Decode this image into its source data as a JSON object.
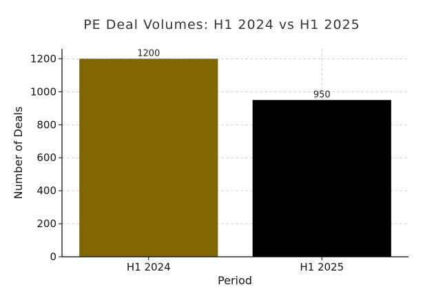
{
  "chart_data": {
    "type": "bar",
    "title": "PE Deal Volumes: H1 2024 vs H1 2025",
    "xlabel": "Period",
    "ylabel": "Number of Deals",
    "categories": [
      "H1 2024",
      "H1 2025"
    ],
    "values": [
      1200,
      950
    ],
    "data_labels": [
      "1200",
      "950"
    ],
    "bar_colors": [
      "#806600",
      "#000000"
    ],
    "ylim": [
      0,
      1260
    ],
    "yticks": [
      0,
      200,
      400,
      600,
      800,
      1000,
      1200
    ],
    "ytick_labels": [
      "0",
      "200",
      "400",
      "600",
      "800",
      "1000",
      "1200"
    ],
    "grid": true,
    "legend": "none"
  }
}
